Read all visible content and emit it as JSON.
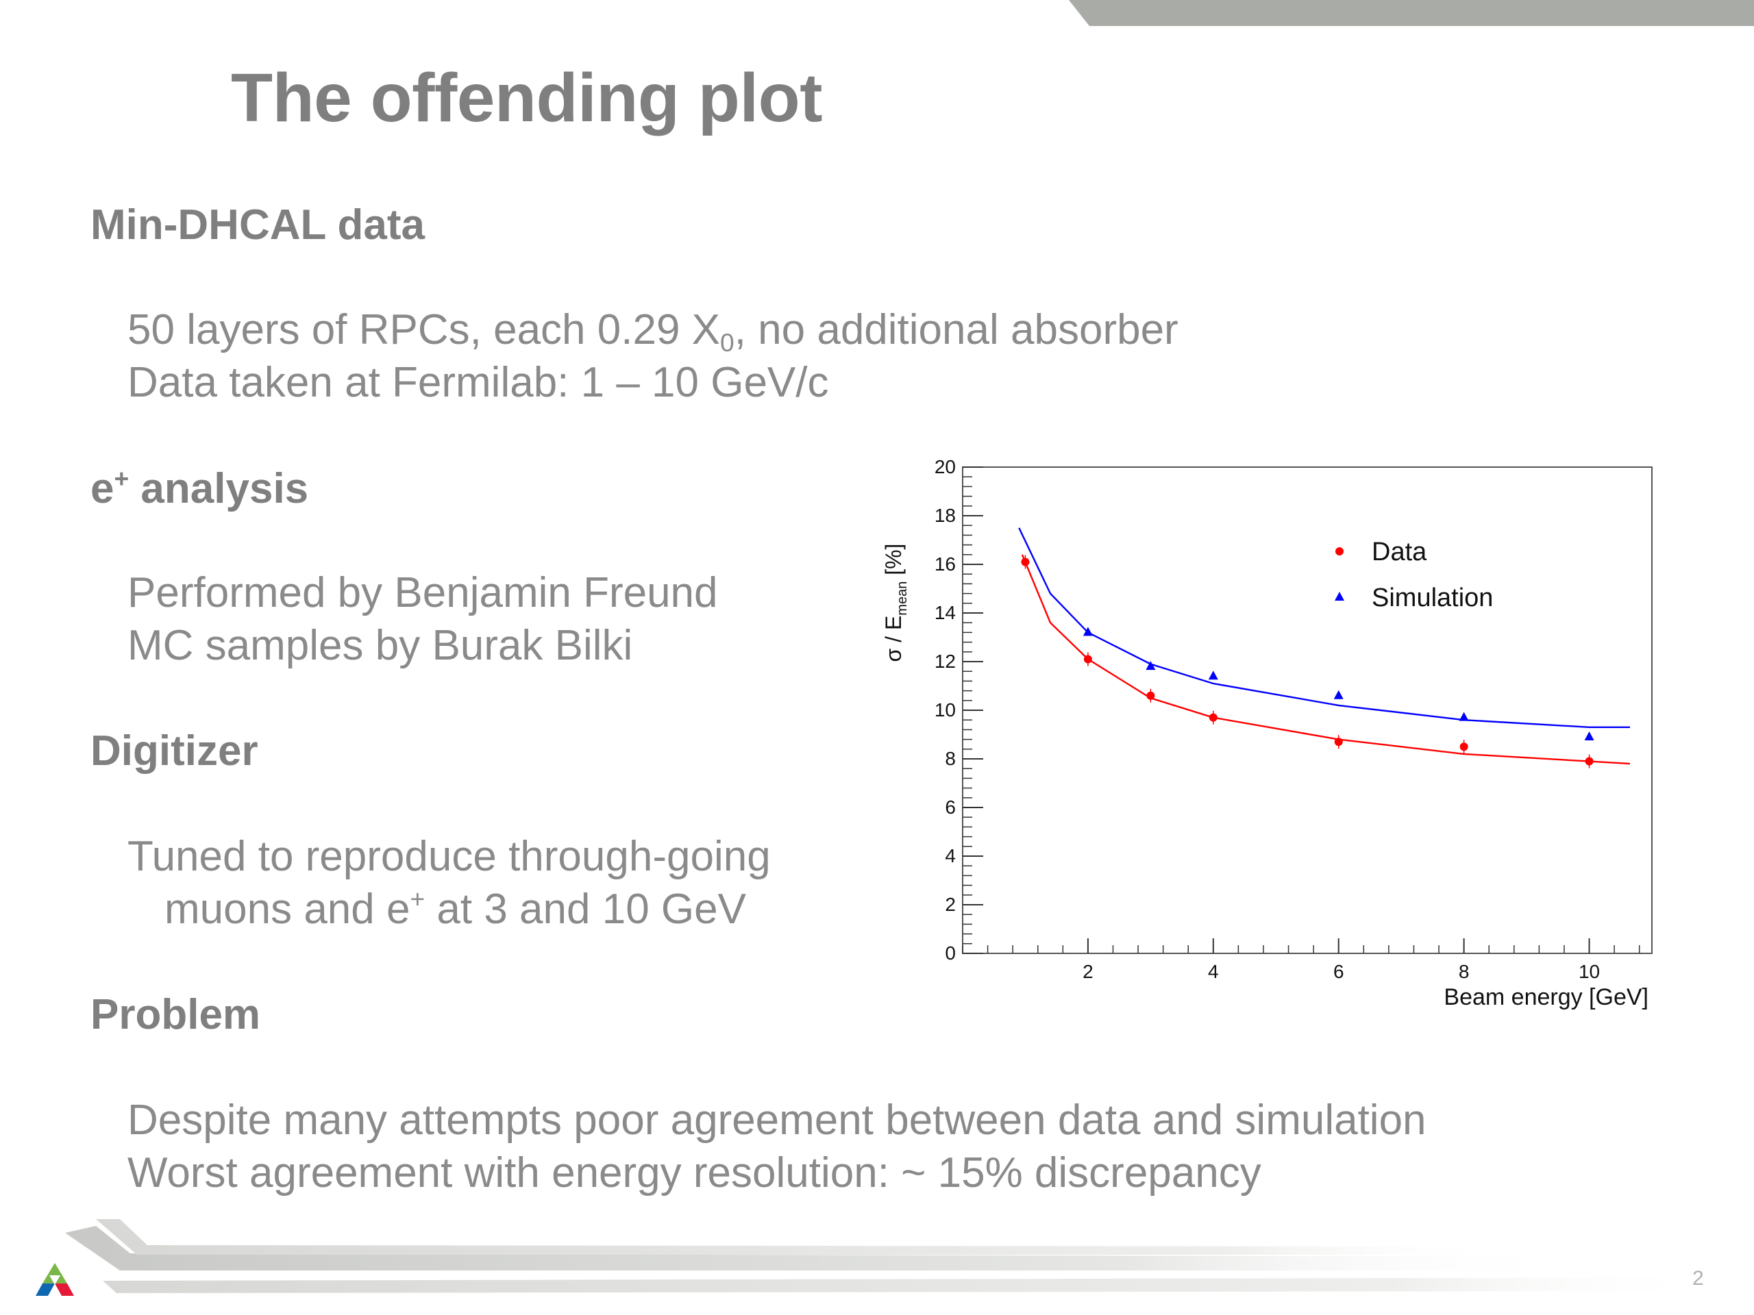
{
  "slide": {
    "title": "The offending plot",
    "page_number": "2"
  },
  "sections": {
    "s1": {
      "heading": "Min-DHCAL data",
      "line1_pre": "50 layers of RPCs, each 0.29 X",
      "line1_sub": "0",
      "line1_post": ", no additional absorber",
      "line2": "Data taken at Fermilab: 1 – 10 GeV/c"
    },
    "s2": {
      "heading_pre": "e",
      "heading_sup": "+",
      "heading_post": " analysis",
      "line1": "Performed by Benjamin Freund",
      "line2": "MC samples by Burak Bilki"
    },
    "s3": {
      "heading": "Digitizer",
      "line1": "Tuned to reproduce through-going",
      "line2_pre": "muons and e",
      "line2_sup": "+",
      "line2_post": "  at 3 and 10 GeV"
    },
    "s4": {
      "heading": "Problem",
      "line1": "Despite many attempts poor agreement between data and simulation",
      "line2": "Worst agreement with energy resolution: ~ 15% discrepancy"
    }
  },
  "chart_data": {
    "type": "scatter",
    "title": "",
    "xlabel": "Beam energy [GeV]",
    "ylabel_main": "σ / E",
    "ylabel_sub": "mean",
    "ylabel_unit": " [%]",
    "xlim": [
      0,
      11
    ],
    "ylim": [
      0,
      20
    ],
    "x_ticks": [
      2,
      4,
      6,
      8,
      10
    ],
    "y_ticks": [
      0,
      2,
      4,
      6,
      8,
      10,
      12,
      14,
      16,
      18,
      20
    ],
    "grid": false,
    "legend_position": "top-right",
    "series": [
      {
        "name": "Data",
        "marker": "circle",
        "color": "#ff0000",
        "x": [
          1,
          2,
          3,
          4,
          6,
          8,
          10
        ],
        "y": [
          16.1,
          12.1,
          10.6,
          9.7,
          8.7,
          8.5,
          7.9
        ],
        "fit": [
          [
            0.95,
            16.4
          ],
          [
            1.4,
            13.6
          ],
          [
            2,
            12.1
          ],
          [
            3,
            10.5
          ],
          [
            4,
            9.7
          ],
          [
            6,
            8.8
          ],
          [
            8,
            8.2
          ],
          [
            10,
            7.9
          ],
          [
            10.65,
            7.8
          ]
        ]
      },
      {
        "name": "Simulation",
        "marker": "triangle",
        "color": "#0000ff",
        "x": [
          2,
          3,
          4,
          6,
          8,
          10
        ],
        "y": [
          13.2,
          11.8,
          11.4,
          10.6,
          9.7,
          8.9
        ],
        "fit": [
          [
            0.9,
            17.5
          ],
          [
            1.4,
            14.8
          ],
          [
            2,
            13.2
          ],
          [
            3,
            11.9
          ],
          [
            4,
            11.1
          ],
          [
            6,
            10.2
          ],
          [
            8,
            9.6
          ],
          [
            10,
            9.3
          ],
          [
            10.65,
            9.3
          ]
        ]
      }
    ]
  }
}
